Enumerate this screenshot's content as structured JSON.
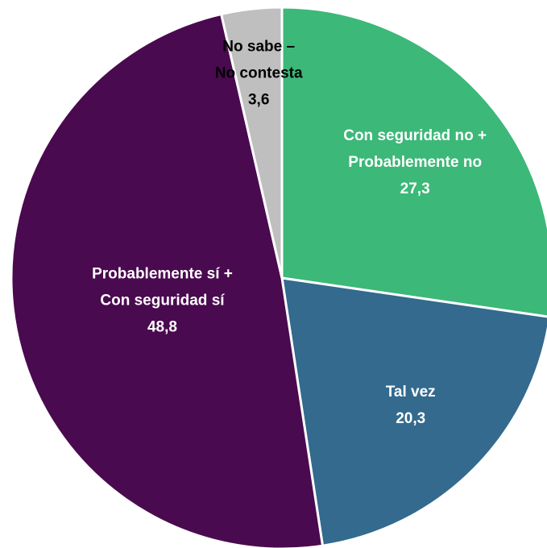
{
  "chart_data": {
    "type": "pie",
    "categories": [
      [
        "Con seguridad no +",
        "Probablemente no"
      ],
      [
        "Tal vez"
      ],
      [
        "Probablemente sí +",
        "Con seguridad sí"
      ],
      [
        "No sabe –",
        "No contesta"
      ]
    ],
    "values": [
      27.3,
      20.3,
      48.8,
      3.6
    ],
    "value_labels": [
      "27,3",
      "20,3",
      "48,8",
      "3,6"
    ],
    "colors": [
      "#3cb878",
      "#336a8e",
      "#4a0a4f",
      "#bfbfbf"
    ]
  }
}
